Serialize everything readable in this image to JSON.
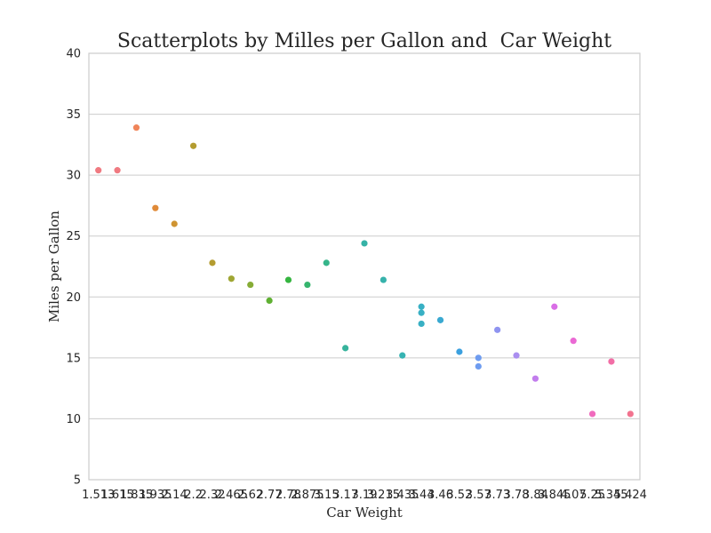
{
  "chart_data": {
    "type": "scatter",
    "title": "Scatterplots by Milles per Gallon and  Car Weight",
    "xlabel": "Car Weight",
    "ylabel": "Miles per Gallon",
    "ylim": [
      5,
      40
    ],
    "yticks": [
      5,
      10,
      15,
      20,
      25,
      30,
      35,
      40
    ],
    "grid": "horizontal",
    "categories": [
      "1.513",
      "1.615",
      "1.835",
      "1.935",
      "2.14",
      "2.2",
      "2.32",
      "2.465",
      "2.62",
      "2.77",
      "2.78",
      "2.875",
      "3.15",
      "3.17",
      "3.19",
      "3.215",
      "3.435",
      "3.44",
      "3.46",
      "3.52",
      "3.57",
      "3.73",
      "3.78",
      "3.84",
      "3.845",
      "4.07",
      "5.25",
      "5.345",
      "5.424"
    ],
    "points": [
      {
        "x": "1.513",
        "y": 30.4,
        "color": "#f07a81"
      },
      {
        "x": "1.615",
        "y": 30.4,
        "color": "#f07a81"
      },
      {
        "x": "1.835",
        "y": 33.9,
        "color": "#f0855a"
      },
      {
        "x": "1.935",
        "y": 27.3,
        "color": "#e08a38"
      },
      {
        "x": "2.14",
        "y": 26.0,
        "color": "#cf9432"
      },
      {
        "x": "2.2",
        "y": 32.4,
        "color": "#b49c30"
      },
      {
        "x": "2.32",
        "y": 22.8,
        "color": "#b49c30"
      },
      {
        "x": "2.465",
        "y": 21.5,
        "color": "#9fa633"
      },
      {
        "x": "2.62",
        "y": 21.0,
        "color": "#86ac36"
      },
      {
        "x": "2.77",
        "y": 19.7,
        "color": "#5fb032"
      },
      {
        "x": "2.78",
        "y": 21.4,
        "color": "#35b540"
      },
      {
        "x": "2.875",
        "y": 21.0,
        "color": "#36b56e"
      },
      {
        "x": "3.15",
        "y": 22.8,
        "color": "#36b58a"
      },
      {
        "x": "3.17",
        "y": 15.8,
        "color": "#36b39c"
      },
      {
        "x": "3.19",
        "y": 24.4,
        "color": "#35b2a6"
      },
      {
        "x": "3.215",
        "y": 21.4,
        "color": "#36b2ab"
      },
      {
        "x": "3.435",
        "y": 15.2,
        "color": "#36b3b2"
      },
      {
        "x": "3.44",
        "y": 19.2,
        "color": "#38b0c4"
      },
      {
        "x": "3.44",
        "y": 18.7,
        "color": "#38b0c4"
      },
      {
        "x": "3.44",
        "y": 17.8,
        "color": "#38b0c4"
      },
      {
        "x": "3.46",
        "y": 18.1,
        "color": "#3aa9d1"
      },
      {
        "x": "3.52",
        "y": 15.5,
        "color": "#3ba0df"
      },
      {
        "x": "3.57",
        "y": 15.0,
        "color": "#6e9cf0"
      },
      {
        "x": "3.57",
        "y": 14.3,
        "color": "#6e9cf0"
      },
      {
        "x": "3.73",
        "y": 17.3,
        "color": "#8f94f0"
      },
      {
        "x": "3.78",
        "y": 15.2,
        "color": "#aa8ef0"
      },
      {
        "x": "3.84",
        "y": 13.3,
        "color": "#c27ded"
      },
      {
        "x": "3.845",
        "y": 19.2,
        "color": "#d96ee6"
      },
      {
        "x": "4.07",
        "y": 16.4,
        "color": "#ea69d4"
      },
      {
        "x": "5.25",
        "y": 10.4,
        "color": "#f06bbd"
      },
      {
        "x": "5.345",
        "y": 14.7,
        "color": "#f26ea6"
      },
      {
        "x": "5.424",
        "y": 10.4,
        "color": "#f2738f"
      }
    ]
  }
}
